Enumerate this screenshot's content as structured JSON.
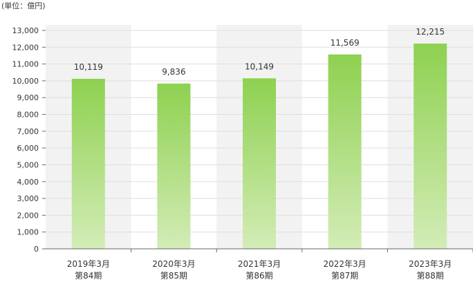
{
  "unit_label": "(単位：億円)",
  "chart_data": {
    "type": "bar",
    "title": "",
    "xlabel": "",
    "ylabel": "",
    "ylim": [
      0,
      13000
    ],
    "yticks": [
      "0",
      "1,000",
      "2,000",
      "3,000",
      "4,000",
      "5,000",
      "6,000",
      "7,000",
      "8,000",
      "9,000",
      "10,000",
      "11,000",
      "12,000",
      "13,000"
    ],
    "categories": [
      [
        "2019年3月",
        "第84期"
      ],
      [
        "2020年3月",
        "第85期"
      ],
      [
        "2021年3月",
        "第86期"
      ],
      [
        "2022年3月",
        "第87期"
      ],
      [
        "2023年3月",
        "第88期"
      ]
    ],
    "values": [
      10119,
      9836,
      10149,
      11569,
      12215
    ],
    "value_labels": [
      "10,119",
      "9,836",
      "10,149",
      "11,569",
      "12,215"
    ],
    "colors": {
      "bar_top": "#8ed150",
      "bar_bottom": "#d3ecb7",
      "band": "#f2f2f2",
      "grid": "#dddddd",
      "axis": "#666666"
    },
    "grid": true,
    "legend": "none"
  }
}
